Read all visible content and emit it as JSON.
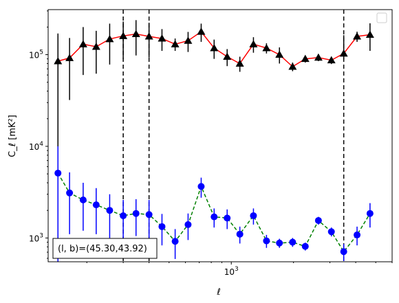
{
  "chart_data": {
    "type": "line",
    "xscale": "log",
    "yscale": "log",
    "xlim": [
      130,
      6000
    ],
    "ylim": [
      550,
      310000
    ],
    "x_tick_labels": [
      {
        "value": 1000,
        "label": "10^3"
      }
    ],
    "y_tick_labels": [
      {
        "value": 1000,
        "label": "10^3"
      },
      {
        "value": 10000,
        "label": "10^4"
      },
      {
        "value": 100000,
        "label": "10^5"
      }
    ],
    "xlabel": "ℓ",
    "ylabel": "C_ℓ [mK²]",
    "legend": "upper-right, empty",
    "grid": false,
    "annotation": "(l, b)=(45.30,43.92)",
    "vlines": [
      300,
      400,
      3500
    ],
    "series": [
      {
        "color": "#ff0000",
        "marker": "triangle",
        "marker_color": "#000000",
        "errorbar_color": "#000000",
        "line_style": "solid",
        "x": [
          145,
          165,
          192,
          222,
          258,
          300,
          346,
          400,
          462,
          535,
          618,
          715,
          826,
          955,
          1100,
          1280,
          1480,
          1710,
          1980,
          2280,
          2640,
          3050,
          3500,
          4060,
          4690
        ],
        "y": [
          85000,
          92000,
          130000,
          122000,
          148000,
          160000,
          168000,
          158000,
          150000,
          130000,
          142000,
          178000,
          118000,
          95000,
          80000,
          130000,
          118000,
          100000,
          74000,
          90000,
          93000,
          87000,
          103000,
          158000,
          165000
        ],
        "yerr_low": [
          85000,
          60000,
          70000,
          60000,
          70000,
          70000,
          70000,
          65000,
          40000,
          20000,
          35000,
          40000,
          28000,
          20000,
          15000,
          25000,
          15000,
          20000,
          8000,
          8000,
          8000,
          8000,
          14000,
          20000,
          55000
        ],
        "yerr_high": [
          85000,
          60000,
          70000,
          60000,
          70000,
          70000,
          70000,
          65000,
          40000,
          20000,
          35000,
          40000,
          28000,
          20000,
          15000,
          25000,
          15000,
          20000,
          8000,
          8000,
          8000,
          8000,
          60000,
          20000,
          55000
        ]
      },
      {
        "color": "#008000",
        "marker": "circle",
        "marker_color": "#0000ff",
        "errorbar_color": "#0000ff",
        "line_style": "dashed",
        "x": [
          145,
          165,
          192,
          222,
          258,
          300,
          346,
          400,
          462,
          535,
          618,
          715,
          826,
          955,
          1100,
          1280,
          1480,
          1710,
          1980,
          2280,
          2640,
          3050,
          3500,
          4060,
          4690
        ],
        "y": [
          5100,
          3100,
          2600,
          2300,
          2000,
          1750,
          1850,
          1800,
          1330,
          920,
          1400,
          3650,
          1700,
          1650,
          1100,
          1750,
          930,
          880,
          900,
          810,
          1550,
          1170,
          710,
          1080,
          1850
        ],
        "yerr_low": [
          4600,
          2000,
          1400,
          1200,
          1000,
          850,
          800,
          800,
          500,
          330,
          450,
          900,
          400,
          400,
          230,
          350,
          150,
          100,
          100,
          80,
          150,
          130,
          150,
          250,
          550
        ],
        "yerr_high": [
          4900,
          2100,
          1400,
          1200,
          1000,
          850,
          800,
          800,
          500,
          330,
          450,
          900,
          400,
          400,
          230,
          350,
          150,
          100,
          100,
          80,
          150,
          130,
          150,
          250,
          550
        ]
      }
    ]
  }
}
